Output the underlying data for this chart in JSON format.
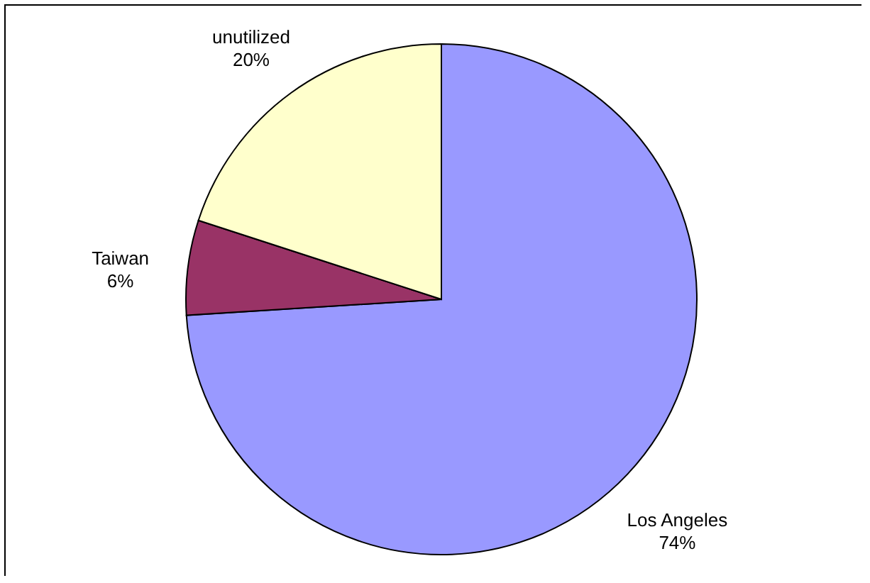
{
  "chart_data": {
    "type": "pie",
    "categories": [
      "Los Angeles",
      "Taiwan",
      "unutilized"
    ],
    "values": [
      74,
      6,
      20
    ],
    "colors": [
      "#9999ff",
      "#993366",
      "#ffffcc"
    ],
    "value_labels": [
      "74%",
      "6%",
      "20%"
    ]
  }
}
